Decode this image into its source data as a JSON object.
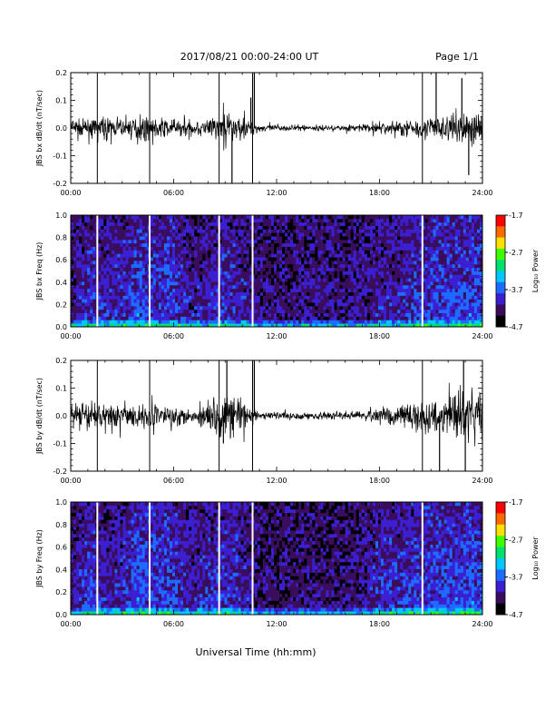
{
  "header": {
    "title": "2017/08/21   00:00-24:00 UT",
    "page": "Page 1/1"
  },
  "xaxis": {
    "label": "Universal Time (hh:mm)",
    "ticks": [
      "00:00",
      "06:00",
      "12:00",
      "18:00",
      "24:00"
    ],
    "range_hours": [
      0,
      24
    ]
  },
  "colorbar": {
    "label": "Log₁₀ Power",
    "ticks": [
      "-1.7",
      "-2.7",
      "-3.7",
      "-4.7"
    ],
    "range": [
      -4.7,
      -1.7
    ],
    "colormap": [
      "#000000",
      "#3a0d5e",
      "#3b1fd0",
      "#1e6cff",
      "#00c8ff",
      "#00e070",
      "#3cff00",
      "#ffe000",
      "#ff6a00",
      "#ff0000"
    ]
  },
  "data_gap_times_hours": [
    1.55,
    4.6,
    8.65,
    10.6,
    20.5
  ],
  "chart_data": [
    {
      "type": "line",
      "ylabel": "JBS bx dB/dt (nT/sec)",
      "ylim": [
        -0.2,
        0.2
      ],
      "yticks": [
        "0.2",
        "0.1",
        "0.0",
        "-0.1",
        "-0.2"
      ],
      "x_hours": [
        0,
        1,
        2,
        3,
        4,
        5,
        6,
        7,
        8,
        9,
        10,
        11,
        12,
        13,
        14,
        15,
        16,
        17,
        18,
        19,
        20,
        21,
        22,
        23,
        24
      ],
      "envelope_amplitude": [
        0.05,
        0.04,
        0.05,
        0.045,
        0.06,
        0.05,
        0.05,
        0.04,
        0.05,
        0.09,
        0.06,
        0.02,
        0.015,
        0.015,
        0.015,
        0.015,
        0.015,
        0.02,
        0.03,
        0.04,
        0.05,
        0.06,
        0.07,
        0.09,
        0.08
      ],
      "spikes": [
        {
          "t": 9.4,
          "v": -0.2
        },
        {
          "t": 10.5,
          "v": 0.11
        },
        {
          "t": 10.7,
          "v": 0.2
        },
        {
          "t": 21.3,
          "v": 0.2
        },
        {
          "t": 22.8,
          "v": 0.18
        },
        {
          "t": 23.2,
          "v": -0.17
        }
      ]
    },
    {
      "type": "heatmap",
      "ylabel": "JBS bx Freq (Hz)",
      "ylim": [
        0,
        1
      ],
      "yticks": [
        "1.0",
        "0.8",
        "0.6",
        "0.4",
        "0.2",
        "0.0"
      ],
      "activity_hours": [
        0.2,
        0.5,
        0.35,
        0.4,
        0.7,
        0.5,
        0.6,
        0.3,
        0.35,
        0.5,
        0.35,
        0.2,
        0.15,
        0.15,
        0.2,
        0.25,
        0.2,
        0.25,
        0.35,
        0.35,
        0.45,
        0.55,
        0.6,
        0.65,
        0.65
      ],
      "value_range": [
        -4.7,
        -1.7
      ]
    },
    {
      "type": "line",
      "ylabel": "JBS by dB/dt (nT/sec)",
      "ylim": [
        -0.2,
        0.2
      ],
      "yticks": [
        "0.2",
        "0.1",
        "0.0",
        "-0.1",
        "-0.2"
      ],
      "x_hours": [
        0,
        1,
        2,
        3,
        4,
        5,
        6,
        7,
        8,
        9,
        10,
        11,
        12,
        13,
        14,
        15,
        16,
        17,
        18,
        19,
        20,
        21,
        22,
        23,
        24
      ],
      "envelope_amplitude": [
        0.05,
        0.07,
        0.06,
        0.06,
        0.06,
        0.06,
        0.06,
        0.04,
        0.06,
        0.14,
        0.08,
        0.02,
        0.02,
        0.02,
        0.02,
        0.02,
        0.02,
        0.02,
        0.04,
        0.05,
        0.07,
        0.08,
        0.1,
        0.14,
        0.12
      ],
      "spikes": [
        {
          "t": 8.9,
          "v": -0.1
        },
        {
          "t": 9.1,
          "v": 0.2
        },
        {
          "t": 10.7,
          "v": 0.2
        },
        {
          "t": 21.5,
          "v": -0.2
        },
        {
          "t": 22.9,
          "v": 0.2
        },
        {
          "t": 23.0,
          "v": -0.2
        }
      ]
    },
    {
      "type": "heatmap",
      "ylabel": "JBS by Freq (Hz)",
      "ylim": [
        0,
        1
      ],
      "yticks": [
        "1.0",
        "0.8",
        "0.6",
        "0.4",
        "0.2",
        "0.0"
      ],
      "activity_hours": [
        0.2,
        0.55,
        0.35,
        0.4,
        0.75,
        0.6,
        0.6,
        0.3,
        0.4,
        0.55,
        0.35,
        0.2,
        0.1,
        0.1,
        0.15,
        0.15,
        0.15,
        0.2,
        0.45,
        0.45,
        0.55,
        0.6,
        0.65,
        0.7,
        0.65
      ],
      "value_range": [
        -4.7,
        -1.7
      ]
    }
  ]
}
